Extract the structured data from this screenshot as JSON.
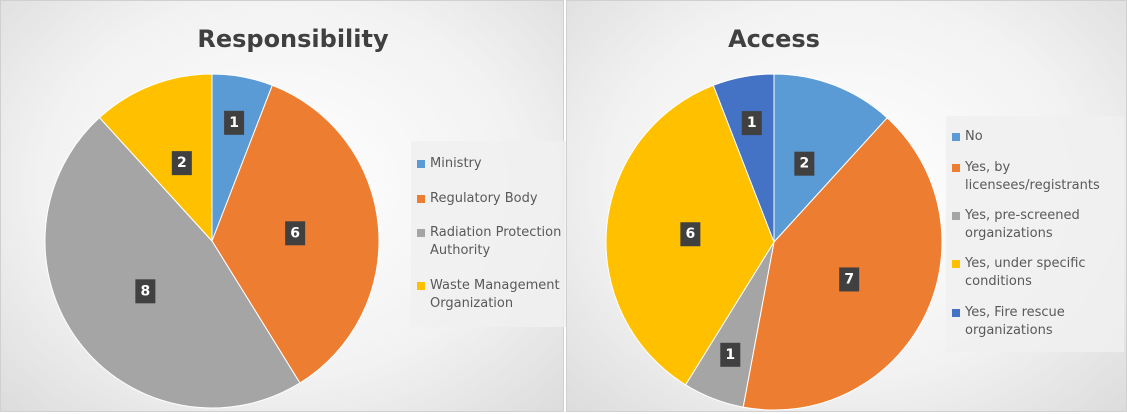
{
  "chart_data": [
    {
      "type": "pie",
      "title": "Responsibility",
      "categories": [
        "Ministry",
        "Regulatory Body",
        "Radiation Protection Authority",
        "Waste Management Organization"
      ],
      "values": [
        1,
        6,
        8,
        2
      ],
      "colors": [
        "#5b9bd5",
        "#ed7d31",
        "#a5a5a5",
        "#ffc000"
      ],
      "legend": "right"
    },
    {
      "type": "pie",
      "title": "Access",
      "categories": [
        "No",
        "Yes, by licensees/registrants",
        "Yes, pre-screened organizations",
        "Yes, under specific conditions",
        "Yes, Fire rescue organizations"
      ],
      "values": [
        2,
        7,
        1,
        6,
        1
      ],
      "colors": [
        "#5b9bd5",
        "#ed7d31",
        "#a5a5a5",
        "#ffc000",
        "#4472c4"
      ],
      "legend": "right"
    }
  ]
}
